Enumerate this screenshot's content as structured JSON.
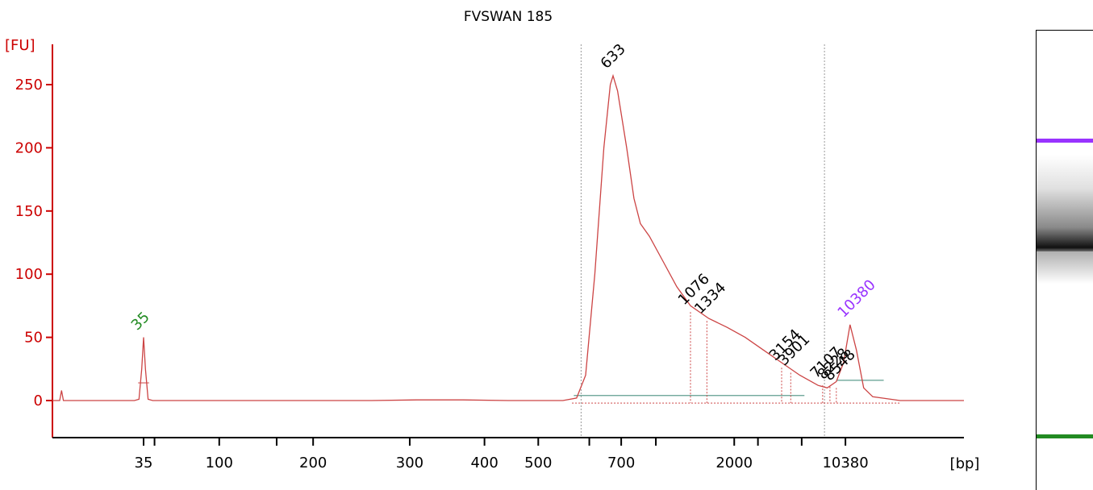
{
  "chart_data": {
    "type": "line",
    "title": "FVSWAN 185",
    "ylabel": "[FU]",
    "xlabel": "[bp]",
    "ylim": [
      -30,
      275
    ],
    "yticks": [
      0,
      50,
      100,
      150,
      200,
      250
    ],
    "xticks": [
      {
        "label": "35",
        "pos": 0.1
      },
      {
        "label": "100",
        "pos": 0.183
      },
      {
        "label": "200",
        "pos": 0.286
      },
      {
        "label": "300",
        "pos": 0.392
      },
      {
        "label": "400",
        "pos": 0.474
      },
      {
        "label": "500",
        "pos": 0.533
      },
      {
        "label": "700",
        "pos": 0.624
      },
      {
        "label": "2000",
        "pos": 0.748
      },
      {
        "label": "10380",
        "pos": 0.87
      }
    ],
    "xtick_marks": [
      0.1,
      0.112,
      0.183,
      0.246,
      0.286,
      0.392,
      0.474,
      0.533,
      0.589,
      0.624,
      0.662,
      0.748,
      0.774,
      0.822,
      0.87
    ],
    "series": [
      {
        "points": [
          [
            0,
            0
          ],
          [
            0.008,
            0
          ],
          [
            0.01,
            8
          ],
          [
            0.012,
            0
          ],
          [
            0.09,
            0
          ],
          [
            0.095,
            1
          ],
          [
            0.098,
            25
          ],
          [
            0.1,
            50
          ],
          [
            0.102,
            25
          ],
          [
            0.105,
            1
          ],
          [
            0.11,
            0
          ],
          [
            0.35,
            0
          ],
          [
            0.4,
            0.5
          ],
          [
            0.45,
            0.5
          ],
          [
            0.5,
            0
          ],
          [
            0.56,
            0
          ],
          [
            0.575,
            2
          ],
          [
            0.585,
            20
          ],
          [
            0.595,
            100
          ],
          [
            0.605,
            200
          ],
          [
            0.612,
            250
          ],
          [
            0.615,
            257
          ],
          [
            0.62,
            245
          ],
          [
            0.63,
            200
          ],
          [
            0.638,
            160
          ],
          [
            0.645,
            140
          ],
          [
            0.655,
            130
          ],
          [
            0.67,
            110
          ],
          [
            0.685,
            90
          ],
          [
            0.7,
            75
          ],
          [
            0.72,
            65
          ],
          [
            0.74,
            58
          ],
          [
            0.76,
            50
          ],
          [
            0.78,
            40
          ],
          [
            0.8,
            30
          ],
          [
            0.82,
            20
          ],
          [
            0.84,
            12
          ],
          [
            0.85,
            10
          ],
          [
            0.86,
            15
          ],
          [
            0.868,
            30
          ],
          [
            0.875,
            60
          ],
          [
            0.882,
            40
          ],
          [
            0.89,
            10
          ],
          [
            0.9,
            3
          ],
          [
            0.93,
            0
          ],
          [
            1,
            0
          ]
        ]
      }
    ],
    "peaks": [
      {
        "label": "35",
        "x": 0.1,
        "y": 50,
        "color": "#228b22"
      },
      {
        "label": "633",
        "x": 0.615,
        "y": 257,
        "color": "#000000"
      },
      {
        "label": "1076",
        "x": 0.7,
        "y": 70,
        "color": "#000000"
      },
      {
        "label": "1334",
        "x": 0.718,
        "y": 63,
        "color": "#000000"
      },
      {
        "label": "3154",
        "x": 0.8,
        "y": 26,
        "color": "#000000"
      },
      {
        "label": "3901",
        "x": 0.81,
        "y": 22,
        "color": "#000000"
      },
      {
        "label": "7107",
        "x": 0.845,
        "y": 12,
        "color": "#000000"
      },
      {
        "label": "8228",
        "x": 0.853,
        "y": 11,
        "color": "#000000"
      },
      {
        "label": "8548",
        "x": 0.86,
        "y": 10,
        "color": "#000000"
      },
      {
        "label": "10380",
        "x": 0.875,
        "y": 60,
        "color": "#9933ff"
      }
    ],
    "region_lines": [
      0.58,
      0.847
    ],
    "colors": {
      "trace": "#cc4444",
      "axis": "#cc0000",
      "baseline": "#5f9e8f",
      "marker_low": "#228b22",
      "marker_high": "#9933ff"
    }
  },
  "gel": {
    "bands": [
      {
        "name": "upper-marker",
        "level": 0.24,
        "color": "#9933ff"
      },
      {
        "name": "lower-marker",
        "level": 0.885,
        "color": "#228b22"
      }
    ],
    "smear_peak_level": 0.47
  }
}
